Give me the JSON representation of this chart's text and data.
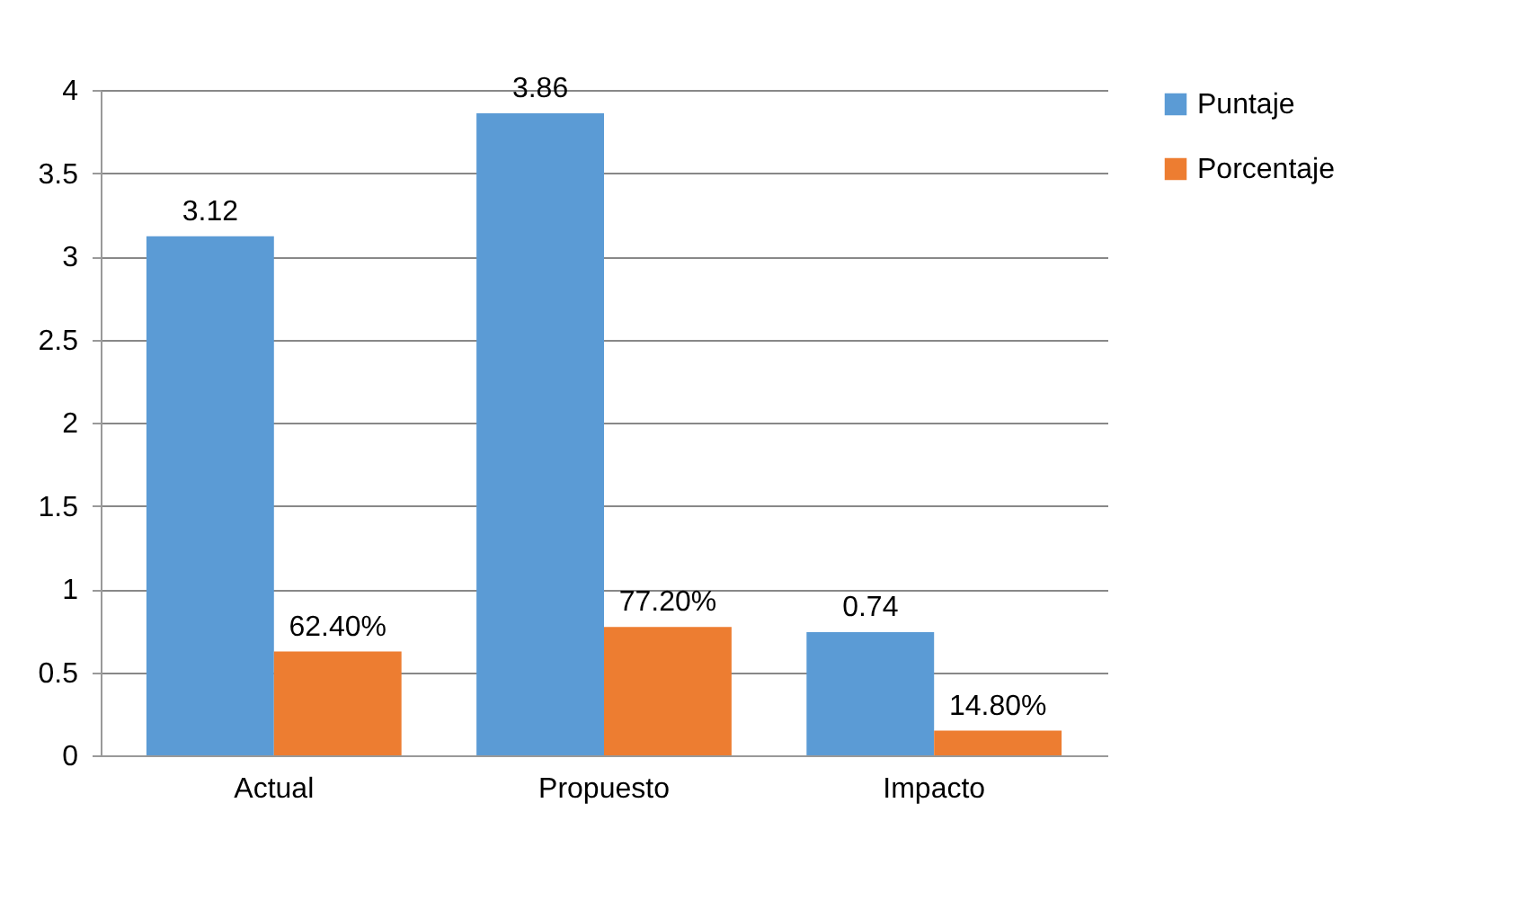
{
  "chart_data": {
    "type": "bar",
    "categories": [
      "Actual",
      "Propuesto",
      "Impacto"
    ],
    "series": [
      {
        "name": "Puntaje",
        "color": "#5b9bd5",
        "values": [
          3.12,
          3.86,
          0.74
        ],
        "value_labels": [
          "3.12",
          "3.86",
          "0.74"
        ]
      },
      {
        "name": "Porcentaje",
        "color": "#ed7d31",
        "values": [
          0.624,
          0.772,
          0.148
        ],
        "value_labels": [
          "62.40%",
          "77.20%",
          "14.80%"
        ]
      }
    ],
    "ylim": [
      0,
      4
    ],
    "yticks": [
      0,
      0.5,
      1,
      1.5,
      2,
      2.5,
      3,
      3.5,
      4
    ],
    "grid": "y",
    "legend": "right"
  }
}
